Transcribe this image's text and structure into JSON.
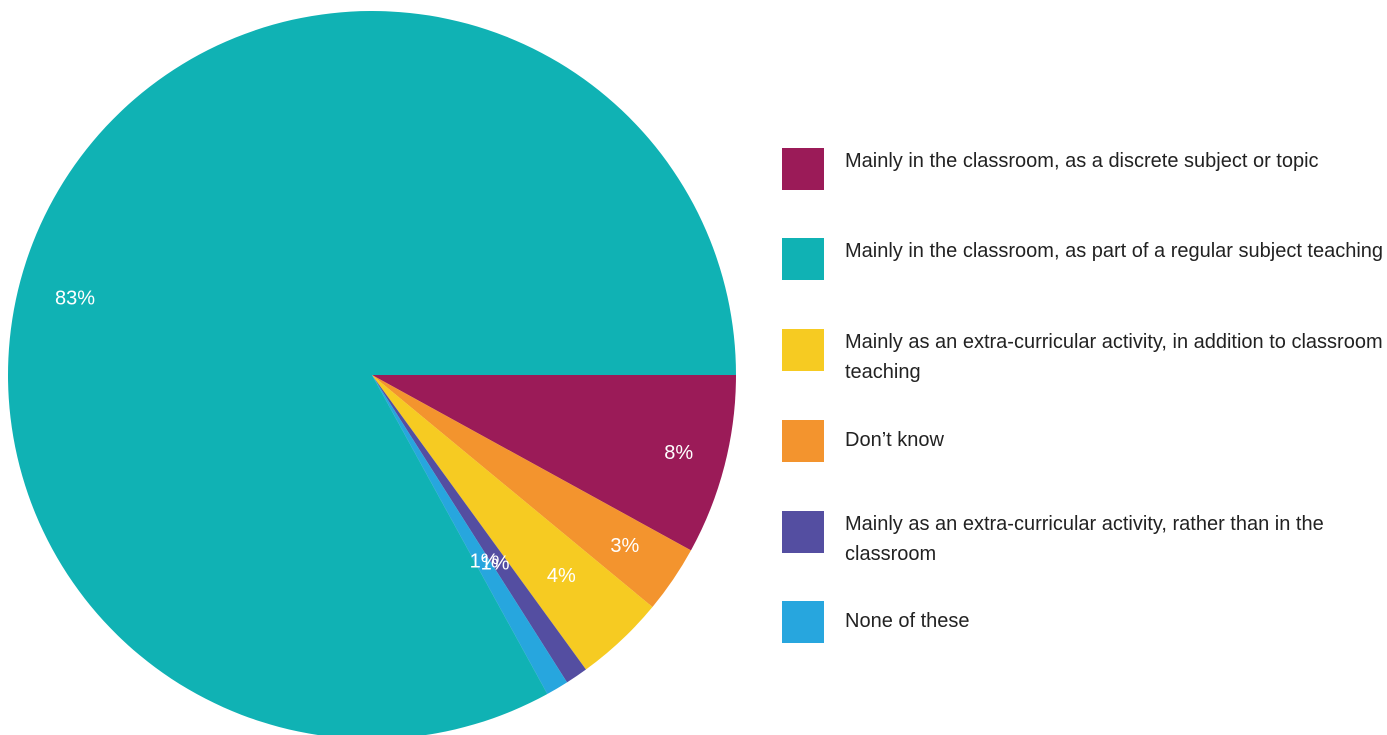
{
  "chart_data": {
    "type": "pie",
    "title": "",
    "slices": [
      {
        "label": "Mainly in the classroom, as a discrete subject or topic",
        "value": 8,
        "display": "8%",
        "color": "#9b1b58"
      },
      {
        "label": "Don’t know",
        "value": 3,
        "display": "3%",
        "color": "#f3942e"
      },
      {
        "label": "Mainly as an extra-curricular activity, in addition to classroom teaching",
        "value": 4,
        "display": "4%",
        "color": "#f6cb22"
      },
      {
        "label": "Mainly as an extra-curricular activity, rather than in the classroom",
        "value": 1,
        "display": "1%",
        "color": "#544ea1"
      },
      {
        "label": "None of these",
        "value": 1,
        "display": "1%",
        "color": "#27a6de"
      },
      {
        "label": "Mainly in the classroom, as part of a regular subject teaching",
        "value": 83,
        "display": "83%",
        "color": "#10b2b4"
      }
    ],
    "legend": [
      {
        "label": "Mainly in the classroom, as a discrete subject or topic",
        "color": "#9b1b58"
      },
      {
        "label": "Mainly in the classroom, as part of a regular subject teaching",
        "color": "#10b2b4"
      },
      {
        "label": "Mainly as an extra-curricular activity, in addition to classroom teaching",
        "color": "#f6cb22"
      },
      {
        "label": "Don’t know",
        "color": "#f3942e"
      },
      {
        "label": "Mainly as an extra-curricular activity, rather than in the classroom",
        "color": "#544ea1"
      },
      {
        "label": "None of these",
        "color": "#27a6de"
      }
    ],
    "legend_position": "right"
  }
}
